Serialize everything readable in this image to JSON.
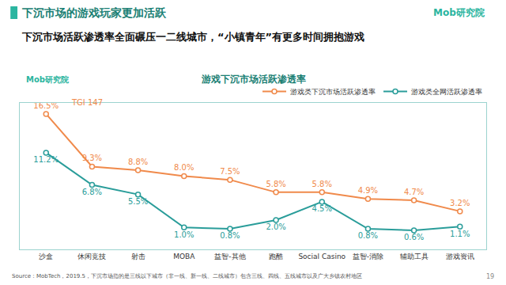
{
  "header": {
    "title": "下沉市场的游戏玩家更加活跃",
    "subtitle": "下沉市场活跃渗透率全面碾压一二线城市，“小镇青年”有更多时间拥抱游戏",
    "logo": "Mob研究院",
    "page": "19"
  },
  "chart_data": {
    "type": "line",
    "title": "游戏下沉市场活跃渗透率",
    "categories": [
      "沙盒",
      "休闲竞技",
      "射击",
      "MOBA",
      "益智-其他",
      "跑酷",
      "Social Casino",
      "益智-消除",
      "辅助工具",
      "游戏资讯"
    ],
    "series": [
      {
        "name": "游戏类下沉市场活跃渗透率",
        "color": "#f08a4b",
        "marker": "circle",
        "values": [
          16.5,
          9.3,
          8.8,
          8.0,
          7.5,
          5.8,
          5.8,
          4.9,
          4.7,
          3.2
        ],
        "value_labels": [
          "16.5%",
          "9.3%",
          "8.8%",
          "8.0%",
          "7.5%",
          "5.8%",
          "5.8%",
          "4.9%",
          "4.7%",
          "3.2%"
        ]
      },
      {
        "name": "游戏类全网活跃渗透率",
        "color": "#2a9d9a",
        "marker": "circle",
        "values": [
          11.2,
          6.8,
          5.5,
          1.0,
          0.8,
          2.0,
          4.5,
          0.8,
          0.6,
          1.1
        ],
        "value_labels": [
          "11.2%",
          "6.8%",
          "5.5%",
          "1.0%",
          "0.8%",
          "2.0%",
          "4.5%",
          "0.8%",
          "0.6%",
          "1.1%"
        ]
      }
    ],
    "ylim": [
      -2,
      18
    ],
    "grid": false,
    "tick_labels": "x",
    "data_labels": true,
    "legend": "top right",
    "annotations": [
      {
        "text": "TGI 147",
        "category": "沙盒"
      }
    ]
  },
  "source": "Source：MobTech，2019.5，下沉市场指的是三线以下城市（非一线、新一线、二线城市）包含三线、四线、五线城市以及广大乡镇农村地区"
}
